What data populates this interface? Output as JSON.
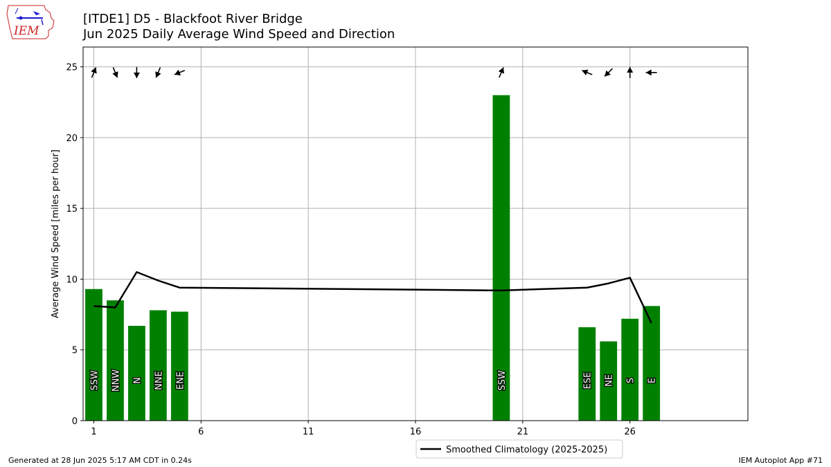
{
  "header": {
    "title_line1": "[ITDE1] D5 - Blackfoot River Bridge",
    "title_line2": "Jun 2025 Daily Average Wind Speed and Direction"
  },
  "logo": {
    "text": "IEM"
  },
  "footer": {
    "left": "Generated at 28 Jun 2025 5:17 AM CDT in 0.24s",
    "right": "IEM Autoplot App #71"
  },
  "colors": {
    "bar": "#008000",
    "line": "#000000",
    "grid": "#b0b0b0",
    "logo_red": "#cc2222",
    "logo_blue": "#1a1acc"
  },
  "chart_data": {
    "type": "bar",
    "ylabel": "Average Wind Speed [miles per hour]",
    "xlim": [
      0.5,
      31.5
    ],
    "ylim": [
      0,
      26.4
    ],
    "xticks": [
      1,
      6,
      11,
      16,
      21,
      26
    ],
    "yticks": [
      0,
      5,
      10,
      15,
      20,
      25
    ],
    "grid": true,
    "days": [
      1,
      2,
      3,
      4,
      5,
      20,
      24,
      25,
      26,
      27
    ],
    "speeds": [
      9.3,
      8.5,
      6.7,
      7.8,
      7.7,
      23.0,
      6.6,
      5.6,
      7.2,
      8.1
    ],
    "directions": [
      "SSW",
      "NNW",
      "N",
      "NNE",
      "ENE",
      "SSW",
      "ESE",
      "NE",
      "S",
      "E"
    ],
    "direction_degrees": [
      202.5,
      337.5,
      0,
      22.5,
      67.5,
      202.5,
      112.5,
      45,
      180,
      90
    ],
    "climatology": {
      "name": "Smoothed Climatology (2025-2025)",
      "x": [
        1,
        2,
        3,
        4,
        5,
        20,
        24,
        25,
        26,
        27
      ],
      "y": [
        8.1,
        8.0,
        10.5,
        9.9,
        9.4,
        9.2,
        9.4,
        9.7,
        10.1,
        6.9
      ]
    },
    "legend_position": "below"
  }
}
